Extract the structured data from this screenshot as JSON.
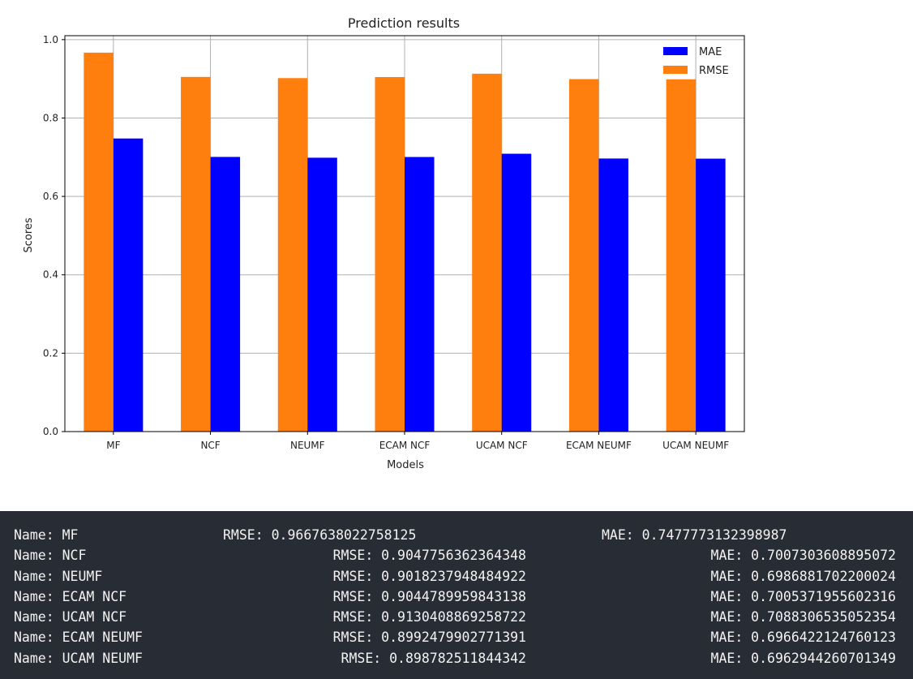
{
  "chart_data": {
    "type": "bar",
    "title": "Prediction results",
    "xlabel": "Models",
    "ylabel": "Scores",
    "categories": [
      "MF",
      "NCF",
      "NEUMF",
      "ECAM NCF",
      "UCAM NCF",
      "ECAM NEUMF",
      "UCAM NEUMF"
    ],
    "series": [
      {
        "name": "MAE",
        "color": "#0000ff",
        "values": [
          0.7477773132398987,
          0.7007303608895072,
          0.6986881702200024,
          0.7005371955602316,
          0.7088306535052354,
          0.6966422124760123,
          0.6962944260701349
        ]
      },
      {
        "name": "RMSE",
        "color": "#ff7f0e",
        "values": [
          0.9667638022758125,
          0.9047756362364348,
          0.9018237948484922,
          0.9044789959843138,
          0.9130408869258722,
          0.8992479902771391,
          0.898782511844342
        ]
      }
    ],
    "yticks": [
      "0.0",
      "0.2",
      "0.4",
      "0.6",
      "0.8",
      "1.0"
    ],
    "ylim": [
      0,
      1.01
    ],
    "grid": true,
    "legend_position": "top-right"
  },
  "output": {
    "lines": [
      {
        "name": "Name: MF",
        "rmse": "RMSE: 0.9667638022758125",
        "mae": "MAE: 0.7477773132398987",
        "aligned": false
      },
      {
        "name": "Name: NCF",
        "rmse": "RMSE: 0.9047756362364348",
        "mae": "MAE: 0.7007303608895072",
        "aligned": true
      },
      {
        "name": "Name: NEUMF",
        "rmse": "RMSE: 0.9018237948484922",
        "mae": "MAE: 0.6986881702200024",
        "aligned": true
      },
      {
        "name": "Name: ECAM NCF",
        "rmse": "RMSE: 0.9044789959843138",
        "mae": "MAE: 0.7005371955602316",
        "aligned": true
      },
      {
        "name": "Name: UCAM NCF",
        "rmse": "RMSE: 0.9130408869258722",
        "mae": "MAE: 0.7088306535052354",
        "aligned": true
      },
      {
        "name": "Name: ECAM NEUMF",
        "rmse": "RMSE: 0.8992479902771391",
        "mae": "MAE: 0.6966422124760123",
        "aligned": true
      },
      {
        "name": "Name: UCAM NEUMF",
        "rmse": "RMSE: 0.898782511844342",
        "mae": "MAE: 0.6962944260701349",
        "aligned": true
      }
    ]
  }
}
